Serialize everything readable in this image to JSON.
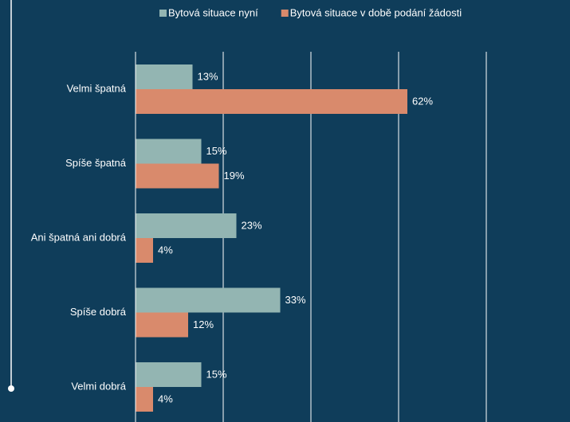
{
  "chart_data": {
    "type": "barh",
    "categories": [
      "Velmi špatná",
      "Spíše špatná",
      "Ani špatná ani dobrá",
      "Spíše dobrá",
      "Velmi dobrá"
    ],
    "series": [
      {
        "name": "Bytová situace nyní",
        "color": "#93b5b2",
        "values": [
          13,
          15,
          23,
          33,
          15
        ],
        "value_labels": [
          "13%",
          "15%",
          "23%",
          "33%",
          "15%"
        ]
      },
      {
        "name": "Bytová situace v době podání žádosti",
        "color": "#d98a6c",
        "values": [
          62,
          19,
          4,
          12,
          4
        ],
        "value_labels": [
          "62%",
          "19%",
          "4%",
          "12%",
          "4%"
        ]
      }
    ],
    "xlim": [
      0,
      80
    ],
    "xticks": [
      0,
      20,
      40,
      60,
      80
    ],
    "grid": true
  }
}
